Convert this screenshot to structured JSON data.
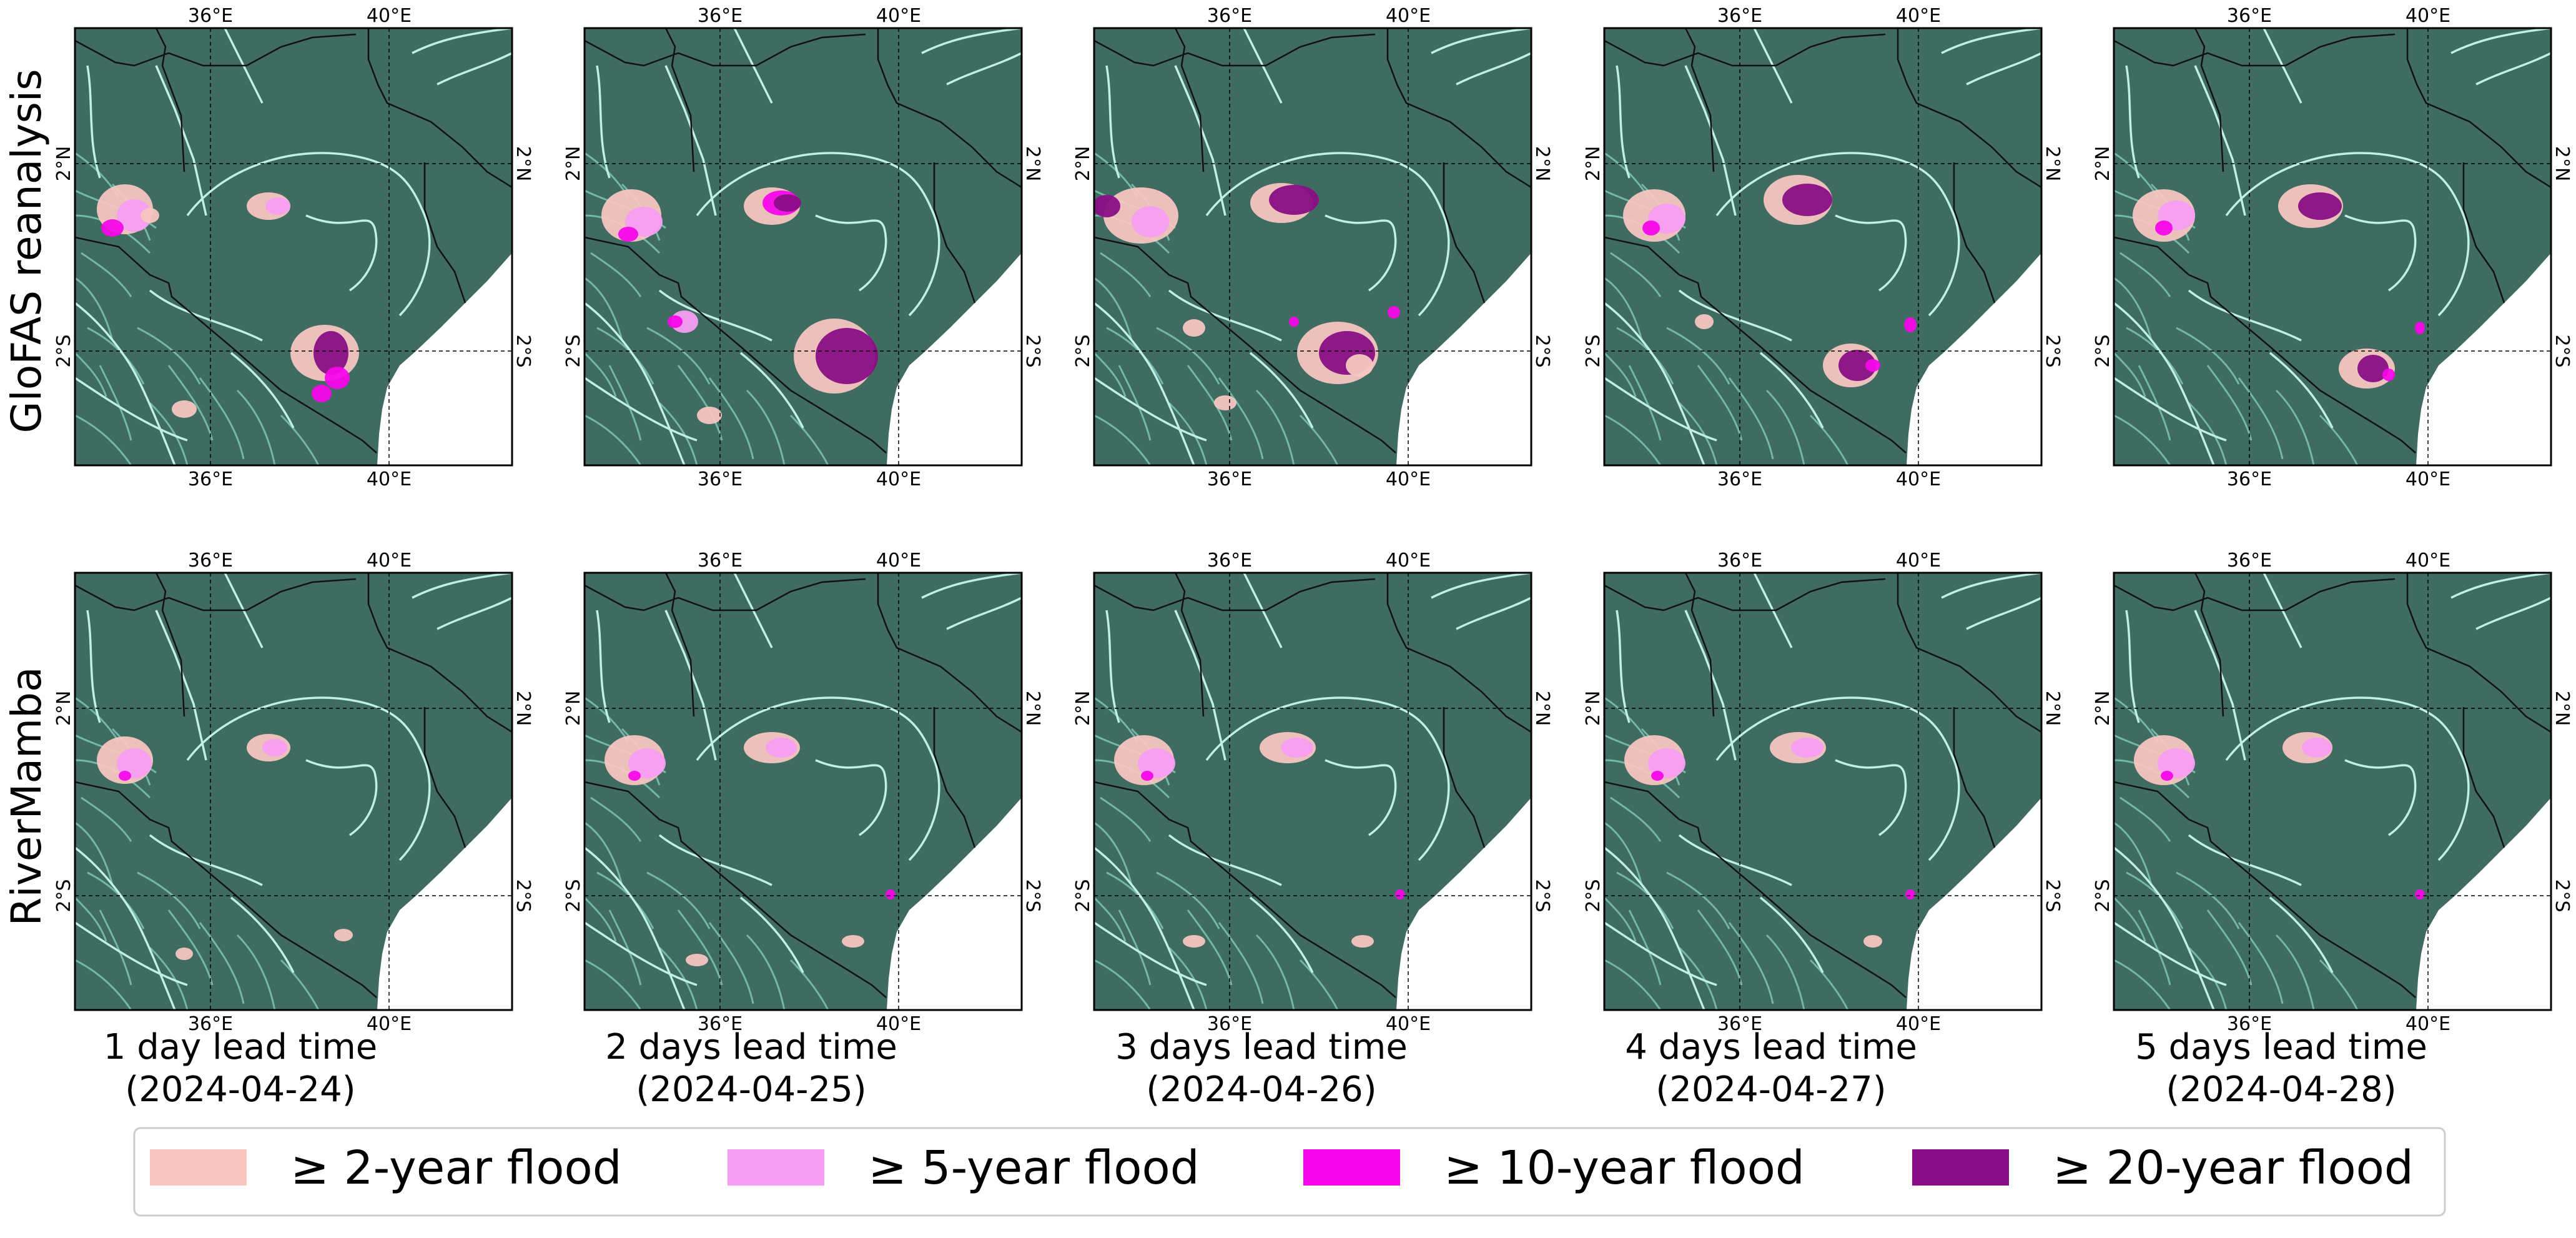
{
  "figure": {
    "rows": [
      {
        "label": "GloFAS reanalysis"
      },
      {
        "label": "RiverMamba"
      }
    ],
    "columns": [
      {
        "lead": "1 day lead time",
        "date": "(2024-04-24)"
      },
      {
        "lead": "2 days lead time",
        "date": "(2024-04-25)"
      },
      {
        "lead": "3 days lead time",
        "date": "(2024-04-26)"
      },
      {
        "lead": "4 days lead time",
        "date": "(2024-04-27)"
      },
      {
        "lead": "5 days lead time",
        "date": "(2024-04-28)"
      }
    ],
    "ticks": {
      "lon_labels": [
        "36°E",
        "40°E"
      ],
      "lat_labels": [
        "2°N",
        "2°S"
      ]
    },
    "colors": {
      "land": "#3f6b60",
      "rivers": "#bff0e6",
      "rivers_dim": "#7cc4b6",
      "sea": "#ffffff",
      "border": "#111111"
    },
    "legend": {
      "items": [
        {
          "label": "≥  2-year flood",
          "color": "#f7c6c0"
        },
        {
          "label": "≥  5-year flood",
          "color": "#f89ef2"
        },
        {
          "label": "≥  10-year flood",
          "color": "#f507e9"
        },
        {
          "label": "≥  20-year flood",
          "color": "#8a0f86"
        }
      ]
    }
  }
}
